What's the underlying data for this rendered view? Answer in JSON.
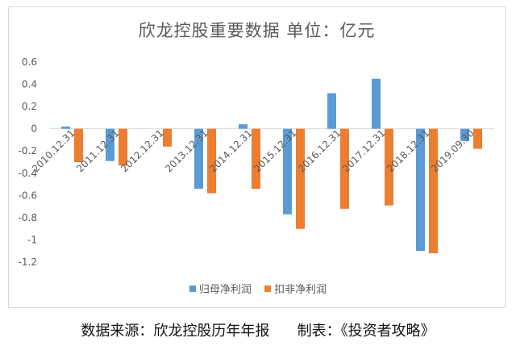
{
  "chart_data": {
    "type": "bar",
    "title": "欣龙控股重要数据  单位：亿元",
    "categories": [
      "2010.12.31",
      "2011.12.31",
      "2012.12.31",
      "2013.12.31",
      "2014.12.31",
      "2015.12.31",
      "2016.12.31",
      "2017.12.31",
      "2018.12.31",
      "2019.09.30"
    ],
    "series": [
      {
        "name": "归母净利润",
        "color": "#5b9bd5",
        "values": [
          0.02,
          -0.29,
          0,
          -0.54,
          0.04,
          -0.77,
          0.32,
          0.45,
          -1.1,
          -0.11
        ]
      },
      {
        "name": "扣非净利润",
        "color": "#ed7d31",
        "values": [
          -0.3,
          -0.33,
          -0.16,
          -0.58,
          -0.54,
          -0.9,
          -0.72,
          -0.69,
          -1.12,
          -0.18
        ]
      }
    ],
    "yticks": [
      "0.6",
      "0.4",
      "0.2",
      "0",
      "-0.2",
      "-0.4",
      "-0.6",
      "-0.8",
      "-1",
      "-1.2"
    ],
    "ylim": [
      -1.2,
      0.6
    ],
    "xlabel": "",
    "ylabel": "",
    "legend_position": "bottom"
  },
  "footer": "数据来源：欣龙控股历年年报      制表：《投资者攻略》"
}
